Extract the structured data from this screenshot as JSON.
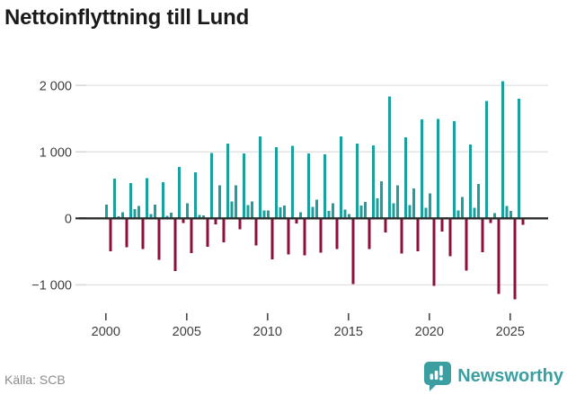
{
  "title": "Nettoinflyttning till Lund",
  "footer": {
    "source": "Källa: SCB",
    "brand": "Newsworthy"
  },
  "colors": {
    "positive_bar": "#1aa09e",
    "negative_bar": "#8e0e3c",
    "grid": "#e1e1e1",
    "zero_line": "#2d2d2d",
    "axis_text": "#3f3f3f",
    "title_text": "#1a1a1a",
    "source_text": "#8c8c8c",
    "brand_teal": "#3b9fa1"
  },
  "chart_data": {
    "type": "bar",
    "title": "Nettoinflyttning till Lund",
    "x_unit": "quarter",
    "start_year": 2000,
    "end": "2025 Q4",
    "grid": "horizontal",
    "legend_position": "none",
    "ylim": [
      -1400,
      2200
    ],
    "y_ticks": [
      {
        "label": "2 000",
        "value": 2000
      },
      {
        "label": "1 000",
        "value": 1000
      },
      {
        "label": "0",
        "value": 0
      },
      {
        "label": "−1 000",
        "value": -1000
      }
    ],
    "x_ticks": [
      2000,
      2005,
      2010,
      2015,
      2020,
      2025
    ],
    "values": [
      207,
      -495,
      598,
      32,
      90,
      -437,
      531,
      140,
      185,
      -459,
      607,
      63,
      207,
      -621,
      545,
      41,
      86,
      -790,
      775,
      -68,
      230,
      -520,
      690,
      50,
      45,
      -430,
      980,
      -90,
      495,
      -360,
      1125,
      257,
      495,
      -165,
      975,
      200,
      257,
      -405,
      1230,
      120,
      120,
      -615,
      1070,
      165,
      193,
      -540,
      1090,
      -77,
      90,
      -553,
      977,
      171,
      284,
      -518,
      963,
      113,
      225,
      -464,
      1230,
      135,
      68,
      -985,
      1125,
      194,
      248,
      -464,
      1094,
      300,
      554,
      -212,
      1830,
      225,
      495,
      -527,
      1216,
      203,
      450,
      -495,
      1486,
      158,
      374,
      -1013,
      1495,
      -198,
      20,
      -567,
      1464,
      122,
      320,
      -788,
      1112,
      158,
      518,
      -510,
      1768,
      -68,
      77,
      -1139,
      2060,
      185,
      113,
      -1216,
      1800,
      -99
    ]
  }
}
